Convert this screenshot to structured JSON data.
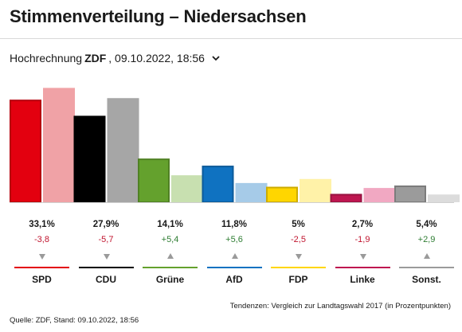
{
  "header": {
    "title": "Stimmenverteilung – Niedersachsen",
    "selector_prefix": "Hochrechnung",
    "selector_source": "ZDF",
    "selector_date": ", 09.10.2022, 18:56"
  },
  "chart_data": {
    "type": "bar",
    "categories": [
      "SPD",
      "CDU",
      "Grüne",
      "AfD",
      "FDP",
      "Linke",
      "Sonst."
    ],
    "series": [
      {
        "values": [
          33.1,
          27.9,
          14.1,
          11.8,
          5.0,
          2.7,
          5.4
        ]
      },
      {
        "values": [
          36.9,
          33.6,
          8.7,
          6.2,
          7.5,
          4.6,
          2.5
        ]
      }
    ],
    "value_labels": [
      "33,1%",
      "27,9%",
      "14,1%",
      "11,8%",
      "5%",
      "2,7%",
      "5,4%"
    ],
    "diff_labels": [
      "-3,8",
      "-5,7",
      "+5,4",
      "+5,6",
      "-2,5",
      "-1,9",
      "+2,9"
    ],
    "trend": [
      "down",
      "down",
      "up",
      "up",
      "down",
      "down",
      "up"
    ],
    "colors": [
      "#e3000f",
      "#000000",
      "#64a12d",
      "#0f72c1",
      "#ffd600",
      "#be1650",
      "#9b9b9b"
    ],
    "prev_colors": [
      "#f0a2a6",
      "#a6a6a6",
      "#c8e0b0",
      "#a6cbe8",
      "#fff2a8",
      "#f1a8c2",
      "#dcdcdc"
    ],
    "ylim": [
      0,
      37
    ],
    "grid": false,
    "legend": "none"
  },
  "footer": {
    "note": "Tendenzen: Vergleich zur Landtagswahl 2017 (in Prozentpunkten)",
    "source": "Quelle: ZDF, Stand: 09.10.2022, 18:56"
  },
  "icons": {
    "selector": "chevron-down-icon",
    "down": "triangle-down-icon",
    "up": "triangle-up-icon"
  }
}
